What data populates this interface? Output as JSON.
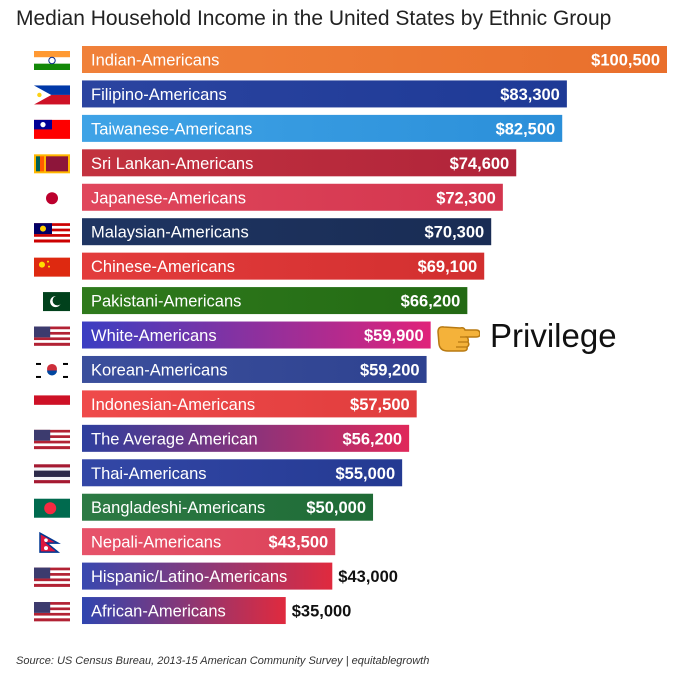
{
  "title": "Median Household Income in the United States  by Ethnic Group",
  "source": "Source: US Census Bureau, 2013-15 American Community Survey | equitablegrowth",
  "annotation": {
    "text": "Privilege",
    "target": "White-Americans",
    "icon": "pointing-hand-icon"
  },
  "chart_data": {
    "type": "bar",
    "orientation": "horizontal",
    "title": "Median Household Income in the United States  by Ethnic Group",
    "xlabel": "",
    "ylabel": "",
    "xlim": [
      0,
      100500
    ],
    "grid": false,
    "categories": [
      "Indian-Americans",
      "Filipino-Americans",
      "Taiwanese-Americans",
      "Sri Lankan-Americans",
      "Japanese-Americans",
      "Malaysian-Americans",
      "Chinese-Americans",
      "Pakistani-Americans",
      "White-Americans",
      "Korean-Americans",
      "Indonesian-Americans",
      "The Average American",
      "Thai-Americans",
      "Bangladeshi-Americans",
      "Nepali-Americans",
      "Hispanic/Latino-Americans",
      "African-Americans"
    ],
    "values": [
      100500,
      83300,
      82500,
      74600,
      72300,
      70300,
      69100,
      66200,
      59900,
      59200,
      57500,
      56200,
      55000,
      50000,
      43500,
      43000,
      35000
    ],
    "value_labels": [
      "$100,500",
      "$83,300",
      "$82,500",
      "$74,600",
      "$72,300",
      "$70,300",
      "$69,100",
      "$66,200",
      "$59,900",
      "$59,200",
      "$57,500",
      "$56,200",
      "$55,000",
      "$50,000",
      "$43,500",
      "$43,000",
      "$35,000"
    ],
    "value_label_outside": [
      false,
      false,
      false,
      false,
      false,
      false,
      false,
      false,
      false,
      false,
      false,
      false,
      false,
      false,
      false,
      true,
      true
    ],
    "bar_colors": [
      [
        "#f0813a",
        "#e96f2c"
      ],
      [
        "#2b44a0",
        "#1e3a96"
      ],
      [
        "#3fa3e6",
        "#2b8fd9"
      ],
      [
        "#c3323f",
        "#b0243a"
      ],
      [
        "#e0475c",
        "#d3354e"
      ],
      [
        "#1f3562",
        "#192c54"
      ],
      [
        "#e33c3c",
        "#d22f2f"
      ],
      [
        "#2f7a1c",
        "#236a14"
      ],
      [
        "#3b3ec2",
        "#e0237a"
      ],
      [
        "#3b4f9c",
        "#2e4290"
      ],
      [
        "#ef4a4a",
        "#e03d3d"
      ],
      [
        "#2d3f9e",
        "#e0285a"
      ],
      [
        "#3347a6",
        "#243a92"
      ],
      [
        "#2c7a44",
        "#1f6b36"
      ],
      [
        "#e7536a",
        "#db4258"
      ],
      [
        "#3848b0",
        "#e02a3e"
      ],
      [
        "#2f45b0",
        "#e02a3e"
      ]
    ],
    "flags": [
      "india-flag-icon",
      "philippines-flag-icon",
      "taiwan-flag-icon",
      "sri-lanka-flag-icon",
      "japan-flag-icon",
      "malaysia-flag-icon",
      "china-flag-icon",
      "pakistan-flag-icon",
      "usa-flag-icon",
      "south-korea-flag-icon",
      "indonesia-flag-icon",
      "usa-flag-icon",
      "thailand-flag-icon",
      "bangladesh-flag-icon",
      "nepal-flag-icon",
      "usa-flag-icon",
      "usa-flag-icon"
    ]
  }
}
